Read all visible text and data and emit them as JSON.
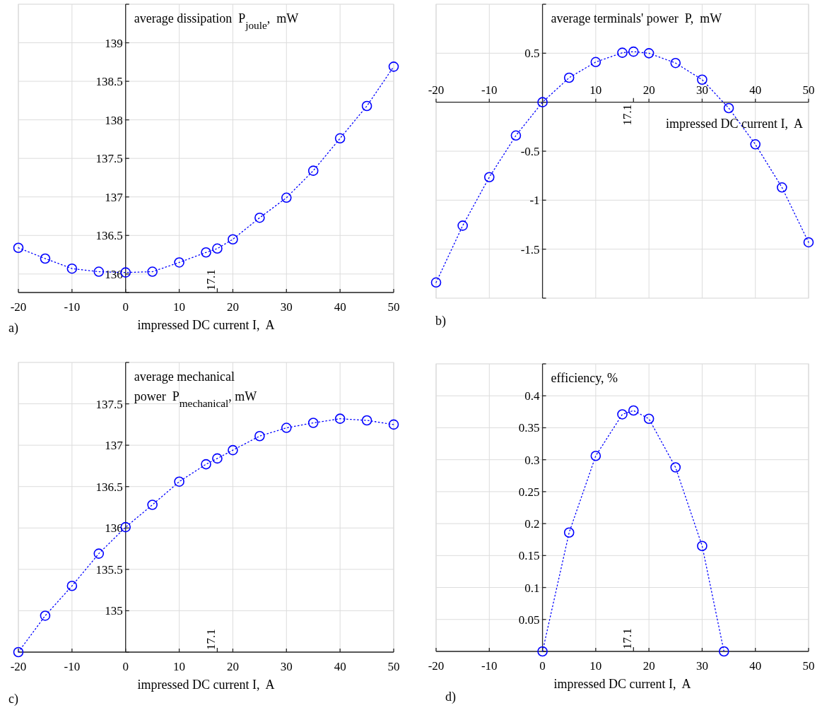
{
  "chart_data": [
    {
      "type": "line",
      "title": "average dissipation  P$_{joule}$,  mW",
      "xlabel": "impressed DC current I,  A",
      "annotations": [
        "a)",
        "17.1"
      ],
      "x": [
        -20,
        -15,
        -10,
        -5,
        0,
        5,
        10,
        15,
        17.1,
        20,
        25,
        30,
        35,
        40,
        45,
        50
      ],
      "series": [
        {
          "color": "#0000ff",
          "values": [
            136.34,
            136.2,
            136.07,
            136.03,
            136.02,
            136.03,
            136.15,
            136.28,
            136.33,
            136.45,
            136.73,
            136.99,
            137.34,
            137.76,
            138.18,
            138.69
          ]
        }
      ],
      "xlim": [
        -20,
        50
      ],
      "xticks": [
        -20,
        -10,
        0,
        10,
        20,
        30,
        40,
        50
      ],
      "ylim": [
        135.76,
        139.5
      ],
      "yticks": [
        136,
        136.5,
        137,
        137.5,
        138,
        138.5,
        139
      ],
      "grid": true,
      "marker": "circle",
      "line_style": "dotted"
    },
    {
      "type": "line",
      "title": "average terminals' power  P,  mW",
      "xlabel": "impressed DC current I,  A",
      "annotations": [
        "b)",
        "17.1"
      ],
      "x": [
        -20,
        -15,
        -10,
        -5,
        0,
        5,
        10,
        15,
        17.1,
        20,
        25,
        30,
        35,
        40,
        45,
        50
      ],
      "series": [
        {
          "color": "#0000ff",
          "values": [
            -1.84,
            -1.26,
            -0.765,
            -0.34,
            0,
            0.25,
            0.41,
            0.505,
            0.516,
            0.5,
            0.4,
            0.23,
            -0.06,
            -0.43,
            -0.87,
            -1.43
          ]
        }
      ],
      "xlim": [
        -20,
        50
      ],
      "xticks": [
        -20,
        -10,
        {
          "value": 0,
          "label": null
        },
        10,
        20,
        30,
        40,
        50
      ],
      "ylim": [
        -2,
        1
      ],
      "yticks": [
        -1.5,
        -1,
        -0.5,
        {
          "value": 0,
          "label": null
        },
        0.5
      ],
      "grid": true,
      "marker": "circle",
      "line_style": "dotted"
    },
    {
      "type": "line",
      "title": "average mechanical\npower  P$_{mechanical}$, mW",
      "xlabel": "impressed DC current I,  A",
      "annotations": [
        "c)",
        "17.1"
      ],
      "x": [
        -20,
        -15,
        -10,
        -5,
        0,
        5,
        10,
        15,
        17.1,
        20,
        25,
        30,
        35,
        40,
        45,
        50
      ],
      "series": [
        {
          "color": "#0000ff",
          "values": [
            134.5,
            134.94,
            135.3,
            135.69,
            136.01,
            136.28,
            136.56,
            136.77,
            136.84,
            136.94,
            137.11,
            137.21,
            137.27,
            137.32,
            137.3,
            137.25
          ]
        }
      ],
      "xlim": [
        -20,
        50
      ],
      "xticks": [
        -20,
        -10,
        0,
        10,
        20,
        30,
        40,
        50
      ],
      "ylim": [
        134.5,
        138
      ],
      "yticks": [
        135,
        135.5,
        136,
        136.5,
        137,
        137.5
      ],
      "grid": true,
      "marker": "circle",
      "line_style": "dotted"
    },
    {
      "type": "line",
      "title": "efficiency, %",
      "xlabel": "impressed DC current I,  A",
      "annotations": [
        "d)",
        "17.1"
      ],
      "x": [
        0,
        5,
        10,
        15,
        17.1,
        20,
        25,
        30,
        34.1
      ],
      "series": [
        {
          "color": "#0000ff",
          "values": [
            0,
            0.186,
            0.306,
            0.371,
            0.377,
            0.364,
            0.288,
            0.165,
            0
          ]
        }
      ],
      "xlim": [
        -20,
        50
      ],
      "xticks": [
        -20,
        -10,
        0,
        10,
        20,
        30,
        40,
        50
      ],
      "ylim": [
        0,
        0.45
      ],
      "yticks": [
        0.05,
        0.1,
        0.15,
        0.2,
        0.25,
        0.3,
        0.35,
        0.4
      ],
      "grid": true,
      "marker": "circle",
      "line_style": "dotted"
    }
  ]
}
